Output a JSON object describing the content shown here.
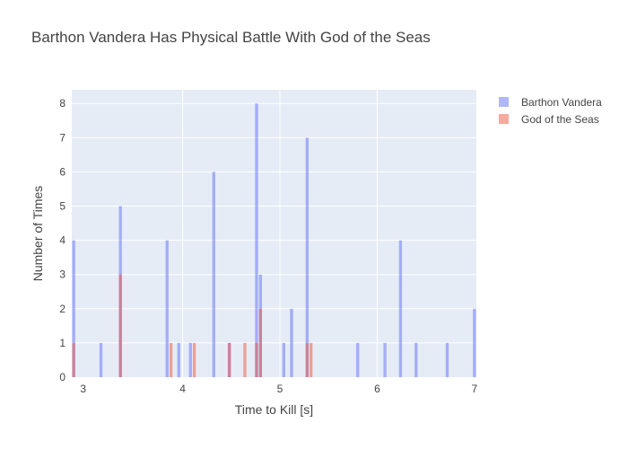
{
  "chart_data": {
    "type": "histogram",
    "title": "Barthon Vandera Has Physical Battle With God of the Seas",
    "xlabel": "Time to Kill [s]",
    "ylabel": "Number of Times",
    "xlim": [
      2.86,
      7.02
    ],
    "ylim": [
      0,
      8.4
    ],
    "x_ticks": [
      4,
      5,
      6,
      7
    ],
    "y_ticks": [
      0,
      1,
      2,
      3,
      4,
      5,
      6,
      7,
      8
    ],
    "bin_width": 0.04,
    "barmode": "overlay",
    "grid": true,
    "legend_position": "top-right",
    "series": [
      {
        "name": "Barthon Vandera",
        "color": "#636efa",
        "opacity": 0.5,
        "bins": [
          {
            "x": 2.88,
            "count": 4
          },
          {
            "x": 3.16,
            "count": 1
          },
          {
            "x": 3.36,
            "count": 5
          },
          {
            "x": 3.84,
            "count": 4
          },
          {
            "x": 3.96,
            "count": 1
          },
          {
            "x": 4.08,
            "count": 1
          },
          {
            "x": 4.32,
            "count": 6
          },
          {
            "x": 4.48,
            "count": 1
          },
          {
            "x": 4.76,
            "count": 8
          },
          {
            "x": 4.8,
            "count": 3
          },
          {
            "x": 5.04,
            "count": 1
          },
          {
            "x": 5.12,
            "count": 2
          },
          {
            "x": 5.28,
            "count": 7
          },
          {
            "x": 5.8,
            "count": 1
          },
          {
            "x": 6.08,
            "count": 1
          },
          {
            "x": 6.24,
            "count": 4
          },
          {
            "x": 6.4,
            "count": 1
          },
          {
            "x": 6.72,
            "count": 1
          },
          {
            "x": 7.0,
            "count": 2
          }
        ]
      },
      {
        "name": "God of the Seas",
        "color": "#ef553b",
        "opacity": 0.5,
        "bins": [
          {
            "x": 2.88,
            "count": 1
          },
          {
            "x": 3.36,
            "count": 3
          },
          {
            "x": 3.88,
            "count": 1
          },
          {
            "x": 4.12,
            "count": 1
          },
          {
            "x": 4.48,
            "count": 1
          },
          {
            "x": 4.64,
            "count": 1
          },
          {
            "x": 4.76,
            "count": 1
          },
          {
            "x": 4.8,
            "count": 2
          },
          {
            "x": 5.28,
            "count": 1
          },
          {
            "x": 5.32,
            "count": 1
          }
        ]
      }
    ]
  }
}
